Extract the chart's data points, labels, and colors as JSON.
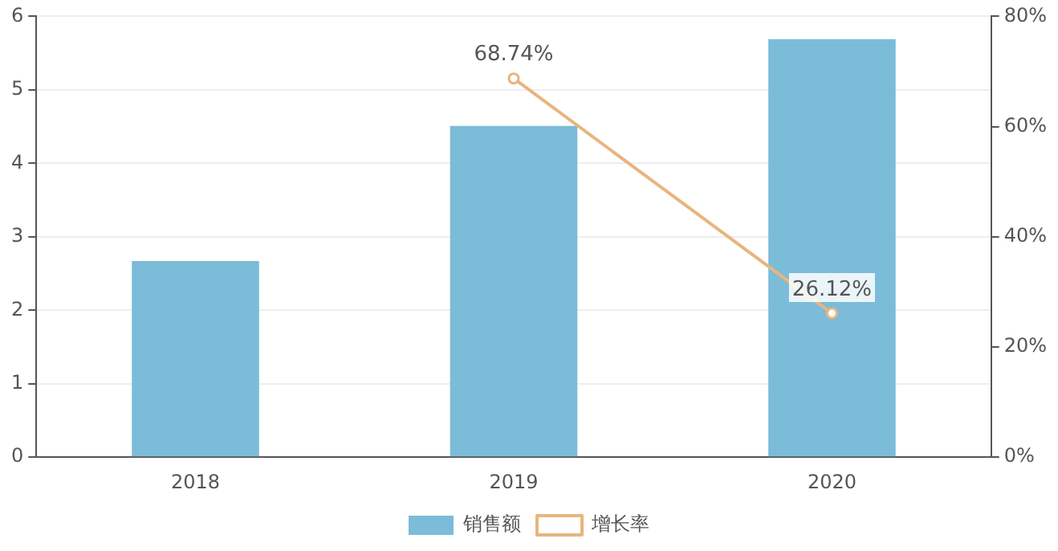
{
  "chart_data": {
    "type": "bar",
    "categories": [
      "2018",
      "2019",
      "2020"
    ],
    "series": [
      {
        "name": "销售额",
        "color": "#7bbcd8",
        "values": [
          2.67,
          4.51,
          5.69
        ]
      },
      {
        "name": "增长率",
        "type": "line",
        "axis": "y2",
        "color": "#e8b57e",
        "values": [
          null,
          68.74,
          26.12
        ],
        "value_labels": [
          null,
          "68.74%",
          "26.12%"
        ]
      }
    ],
    "ylim": [
      0,
      6
    ],
    "yticks": [
      0,
      1,
      2,
      3,
      4,
      5,
      6
    ],
    "y2lim": [
      0,
      80
    ],
    "y2ticks": [
      {
        "value": 0,
        "label": "0%"
      },
      {
        "value": 20,
        "label": "20%"
      },
      {
        "value": 40,
        "label": "40%"
      },
      {
        "value": 60,
        "label": "60%"
      },
      {
        "value": 80,
        "label": "80%"
      }
    ],
    "grid": "y",
    "legend": "bottom",
    "marker": "circle",
    "line_style": "solid"
  }
}
